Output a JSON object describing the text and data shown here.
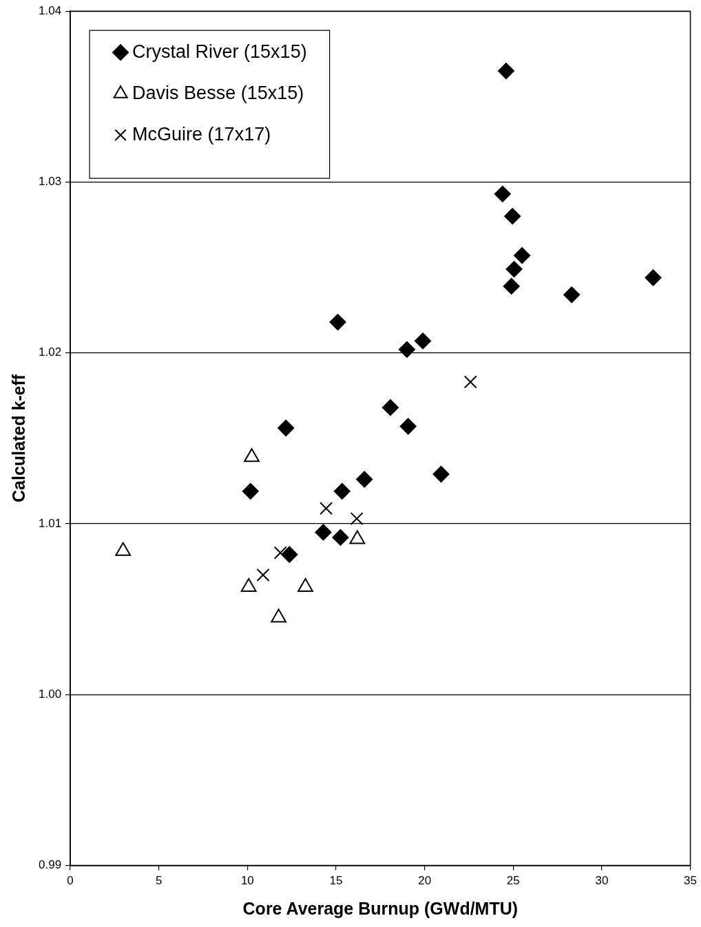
{
  "chart_data": {
    "type": "scatter",
    "xlabel": "Core Average Burnup (GWd/MTU)",
    "ylabel": "Calculated k-eff",
    "xlim": [
      0,
      35
    ],
    "xticks": [
      0,
      5,
      10,
      15,
      20,
      25,
      30,
      35
    ],
    "ylim": [
      0.99,
      1.04
    ],
    "yticks": [
      0.99,
      {
        "value": 1,
        "label": "1.00"
      },
      1.01,
      1.02,
      1.03,
      1.04
    ],
    "grid": "y",
    "legend": "top left",
    "series": [
      {
        "name": "Crystal River (15x15)",
        "color": "#000000",
        "marker": "diamond",
        "x": [
          24.6,
          24.4,
          24.96,
          25.5,
          25.05,
          24.9,
          28.3,
          32.9,
          15.1,
          19.0,
          19.9,
          18.07,
          19.07,
          12.17,
          10.17,
          15.34,
          16.6,
          20.93,
          14.28,
          15.25,
          12.37
        ],
        "values": [
          1.0365,
          1.0293,
          1.028,
          1.0257,
          1.0249,
          1.0239,
          1.0234,
          1.0244,
          1.0218,
          1.0202,
          1.0207,
          1.0168,
          1.0157,
          1.0156,
          1.0119,
          1.0119,
          1.0126,
          1.0129,
          1.0095,
          1.0092,
          1.0082
        ]
      },
      {
        "name": "Davis Besse (15x15)",
        "color": "#000000",
        "marker": "triangle",
        "x": [
          10.24,
          2.98,
          16.2,
          10.07,
          13.27,
          11.76
        ],
        "values": [
          1.0139,
          1.0084,
          1.0091,
          1.0063,
          1.0063,
          1.0045
        ]
      },
      {
        "name": "McGuire (17x17)",
        "color": "#000000",
        "marker": "cross",
        "x": [
          22.59,
          14.44,
          16.17,
          11.86,
          10.88
        ],
        "values": [
          1.0183,
          1.0109,
          1.0103,
          1.0083,
          1.007
        ]
      }
    ]
  }
}
